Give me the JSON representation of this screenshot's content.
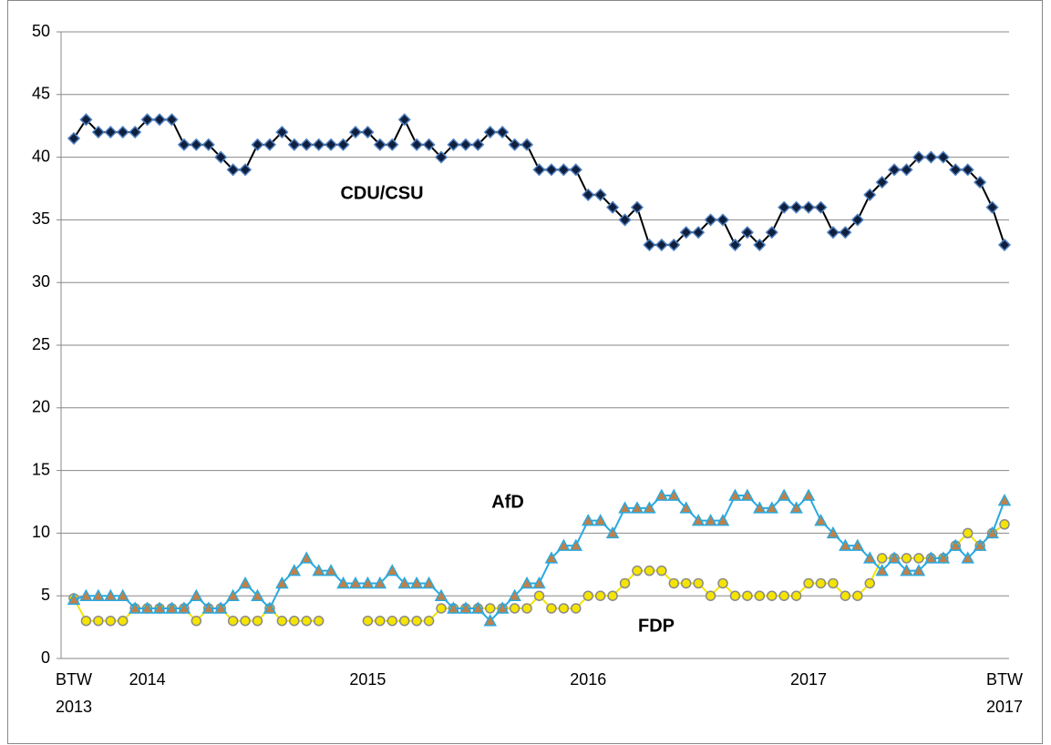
{
  "chart_data": {
    "type": "line",
    "categories": [
      "BTW 2013",
      null,
      null,
      null,
      null,
      null,
      "2014",
      null,
      null,
      null,
      null,
      null,
      null,
      null,
      null,
      null,
      null,
      null,
      null,
      null,
      null,
      null,
      null,
      null,
      "2015",
      null,
      null,
      null,
      null,
      null,
      null,
      null,
      null,
      null,
      null,
      null,
      null,
      null,
      null,
      null,
      null,
      null,
      "2016",
      null,
      null,
      null,
      null,
      null,
      null,
      null,
      null,
      null,
      null,
      null,
      null,
      null,
      null,
      null,
      null,
      null,
      "2017",
      null,
      null,
      null,
      null,
      null,
      null,
      null,
      null,
      null,
      null,
      null,
      null,
      null,
      null,
      null,
      "BTW 2017"
    ],
    "series": [
      {
        "name": "CDU/CSU",
        "color": "#000000",
        "marker": "diamond",
        "marker_color": "#0f1f3d",
        "marker_edge": "#4f7fbf",
        "values": [
          41.5,
          43,
          42,
          42,
          42,
          42,
          43,
          43,
          43,
          41,
          41,
          41,
          40,
          39,
          39,
          41,
          41,
          42,
          41,
          41,
          41,
          41,
          41,
          42,
          42,
          41,
          41,
          43,
          41,
          41,
          40,
          41,
          41,
          41,
          42,
          42,
          41,
          41,
          39,
          39,
          39,
          39,
          37,
          37,
          36,
          35,
          36,
          33,
          33,
          33,
          34,
          34,
          35,
          35,
          33,
          34,
          33,
          34,
          36,
          36,
          36,
          36,
          34,
          34,
          35,
          37,
          38,
          39,
          39,
          40,
          40,
          40,
          39,
          39,
          38,
          36,
          33
        ]
      },
      {
        "name": "AfD",
        "color": "#29a9df",
        "marker": "triangle",
        "marker_color": "#c0804a",
        "marker_edge": "#29a9df",
        "values": [
          4.7,
          5,
          5,
          5,
          5,
          4,
          4,
          4,
          4,
          4,
          5,
          4,
          4,
          5,
          6,
          5,
          4,
          6,
          7,
          8,
          7,
          7,
          6,
          6,
          6,
          6,
          7,
          6,
          6,
          6,
          5,
          4,
          4,
          4,
          3,
          4,
          5,
          6,
          6,
          8,
          9,
          9,
          11,
          11,
          10,
          12,
          12,
          12,
          13,
          13,
          12,
          11,
          11,
          11,
          13,
          13,
          12,
          12,
          13,
          12,
          13,
          11,
          10,
          9,
          9,
          8,
          7,
          8,
          7,
          7,
          8,
          8,
          9,
          8,
          9,
          10,
          12.6
        ]
      },
      {
        "name": "FDP",
        "color": "#f5e400",
        "marker": "circle",
        "marker_color": "#f5e400",
        "marker_edge": "#8a8a8a",
        "values": [
          4.8,
          3,
          3,
          3,
          3,
          4,
          4,
          4,
          4,
          4,
          3,
          4,
          4,
          3,
          3,
          3,
          4,
          3,
          3,
          3,
          3,
          null,
          null,
          null,
          3,
          3,
          3,
          3,
          3,
          3,
          4,
          4,
          4,
          4,
          4,
          4,
          4,
          4,
          5,
          4,
          4,
          4,
          5,
          5,
          5,
          6,
          7,
          7,
          7,
          6,
          6,
          6,
          5,
          6,
          5,
          5,
          5,
          5,
          5,
          5,
          6,
          6,
          6,
          5,
          5,
          6,
          8,
          8,
          8,
          8,
          8,
          8,
          9,
          10,
          9,
          10,
          10.7
        ]
      }
    ],
    "ylim": [
      0,
      50
    ],
    "yticks": [
      0,
      5,
      10,
      15,
      20,
      25,
      30,
      35,
      40,
      45,
      50
    ],
    "grid": true
  }
}
